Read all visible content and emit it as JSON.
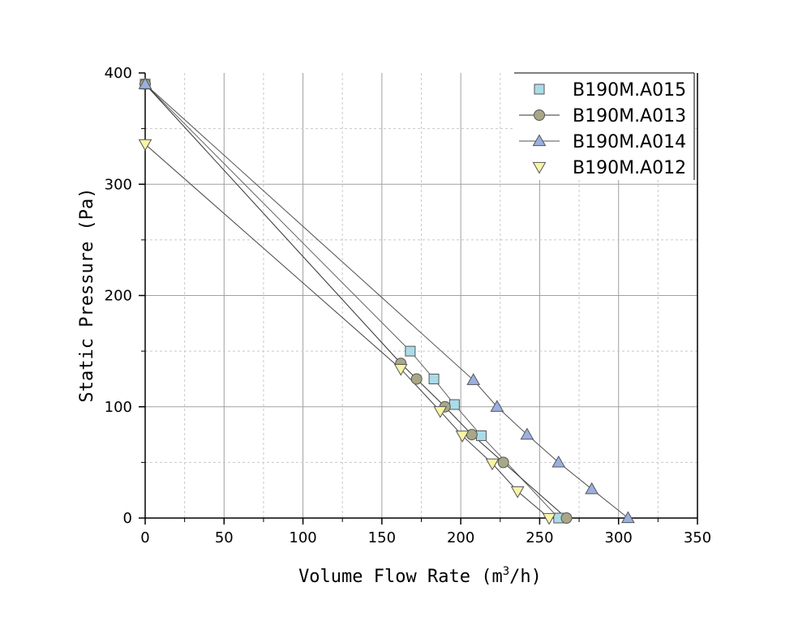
{
  "chart_data": {
    "type": "line",
    "title": "",
    "xlabel_main": "Volume Flow Rate (m",
    "xlabel_sup": "3",
    "xlabel_tail": "/h)",
    "ylabel": "Static Pressure (Pa)",
    "xlim": [
      0,
      350
    ],
    "ylim": [
      0,
      400
    ],
    "xticks": [
      0,
      50,
      100,
      150,
      200,
      250,
      300,
      350
    ],
    "yticks": [
      0,
      100,
      200,
      300,
      400
    ],
    "grid": true,
    "legend_position": "top-right",
    "series": [
      {
        "name": "B190M.A015",
        "marker": "square",
        "color": "#aadce8",
        "line_color": "#606060",
        "show_legend_line": false,
        "x": [
          0,
          168,
          183,
          196,
          213,
          262
        ],
        "y": [
          390,
          150,
          125,
          102,
          74,
          0
        ]
      },
      {
        "name": "B190M.A013",
        "marker": "circle",
        "color": "#a8a888",
        "line_color": "#303030",
        "show_legend_line": true,
        "x": [
          0,
          162,
          172,
          190,
          207,
          227,
          267
        ],
        "y": [
          390,
          139,
          125,
          100,
          75,
          50,
          0
        ]
      },
      {
        "name": "B190M.A014",
        "marker": "triangle-up",
        "color": "#9ab0e0",
        "line_color": "#505050",
        "show_legend_line": true,
        "x": [
          0,
          208,
          223,
          242,
          262,
          283,
          306
        ],
        "y": [
          390,
          124,
          100,
          75,
          50,
          26,
          0
        ]
      },
      {
        "name": "B190M.A012",
        "marker": "triangle-down",
        "color": "#f8f4a8",
        "line_color": "#404040",
        "show_legend_line": false,
        "x": [
          0,
          162,
          187,
          201,
          220,
          236,
          256
        ],
        "y": [
          336,
          134,
          96,
          74,
          49,
          24,
          0
        ]
      }
    ]
  }
}
